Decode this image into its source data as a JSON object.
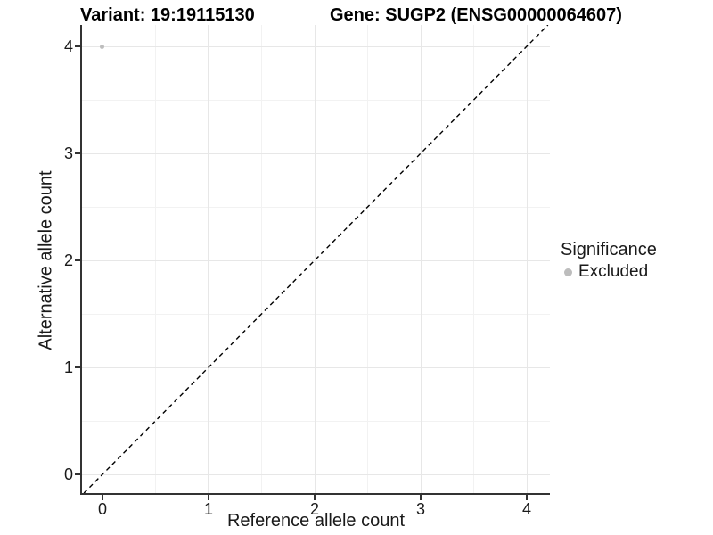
{
  "titles": {
    "variant": "Variant: 19:19115130",
    "gene": "Gene: SUGP2 (ENSG00000064607)"
  },
  "chart_data": {
    "type": "scatter",
    "title": "Variant: 19:19115130   Gene: SUGP2 (ENSG00000064607)",
    "x": {
      "label": "Reference allele count",
      "lim": [
        -0.193,
        4.218
      ],
      "major_ticks": [
        0,
        1,
        2,
        3,
        4
      ],
      "tick_labels": [
        "0",
        "1",
        "2",
        "3",
        "4"
      ],
      "minor_ticks": [
        0.5,
        1.5,
        2.5,
        3.5
      ]
    },
    "y": {
      "label": "Alternative allele count",
      "lim": [
        -0.175,
        4.2
      ],
      "major_ticks": [
        0,
        1,
        2,
        3,
        4
      ],
      "tick_labels": [
        "0",
        "1",
        "2",
        "3",
        "4"
      ],
      "minor_ticks": [
        0.5,
        1.5,
        2.5,
        3.5
      ]
    },
    "series": [
      {
        "name": "Excluded",
        "color": "#bdbdbd",
        "point_size": 5,
        "points": [
          {
            "x": 0,
            "y": 4
          }
        ]
      }
    ],
    "identity_line": {
      "style": "dashed",
      "slope": 1,
      "intercept": 0,
      "color": "#000000",
      "dash": "5,4"
    },
    "grid": {
      "on": true,
      "major_color": "#e7e7e7",
      "minor_color": "#f2f2f2"
    },
    "axis_color": "#333333",
    "legend": {
      "title": "Significance",
      "position": "right",
      "marker_size": 9
    }
  }
}
